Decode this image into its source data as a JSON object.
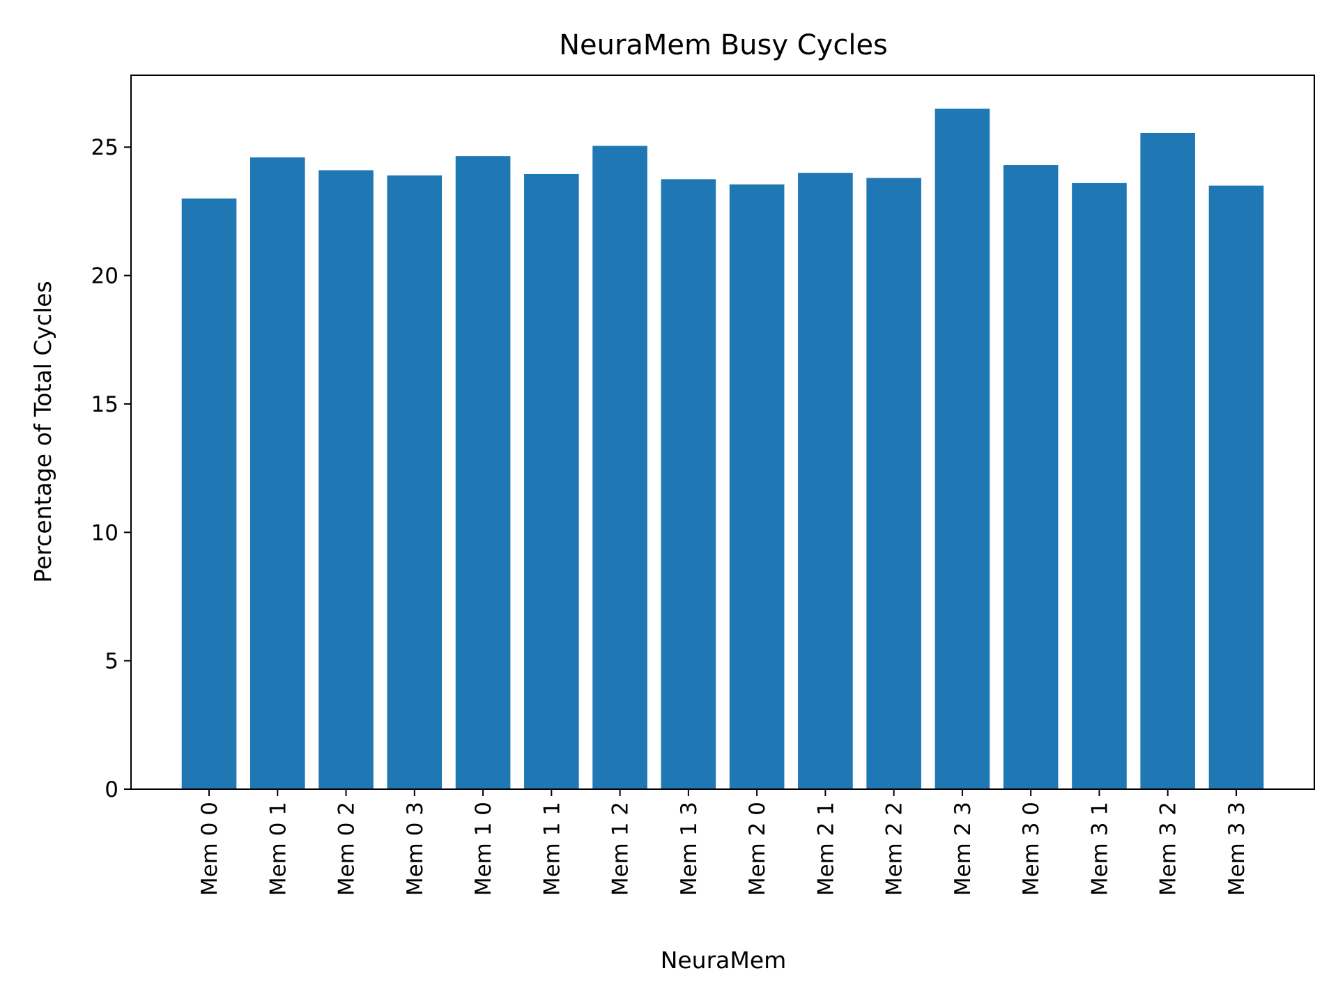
{
  "chart_data": {
    "type": "bar",
    "title": "NeuraMem Busy Cycles",
    "xlabel": "NeuraMem",
    "ylabel": "Percentage of Total Cycles",
    "categories": [
      "Mem 0 0",
      "Mem 0 1",
      "Mem 0 2",
      "Mem 0 3",
      "Mem 1 0",
      "Mem 1 1",
      "Mem 1 2",
      "Mem 1 3",
      "Mem 2 0",
      "Mem 2 1",
      "Mem 2 2",
      "Mem 2 3",
      "Mem 3 0",
      "Mem 3 1",
      "Mem 3 2",
      "Mem 3 3"
    ],
    "values": [
      23.0,
      24.6,
      24.1,
      23.9,
      24.65,
      23.95,
      25.05,
      23.75,
      23.55,
      24.0,
      23.8,
      26.5,
      24.3,
      23.6,
      25.55,
      23.5
    ],
    "ylim": [
      0,
      27.8
    ],
    "yticks": [
      0,
      5,
      10,
      15,
      20,
      25
    ],
    "bar_color": "#1f77b4",
    "grid": false,
    "legend": "none"
  }
}
